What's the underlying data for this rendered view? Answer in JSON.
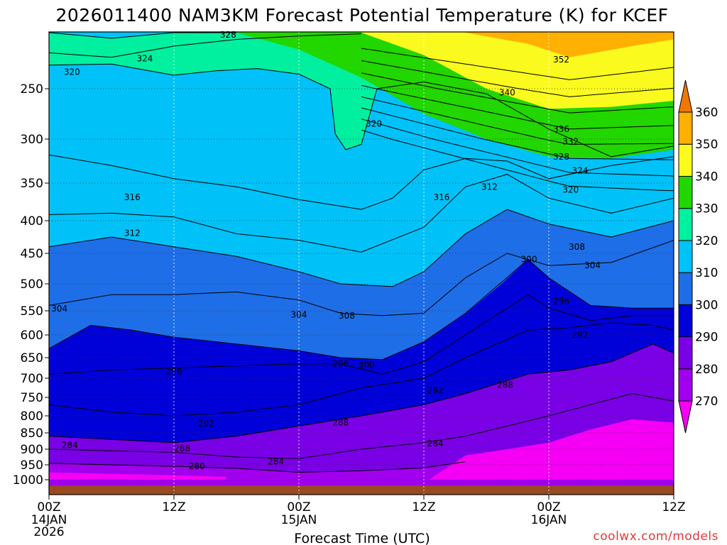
{
  "chart_data": {
    "type": "contour",
    "title": "2026011400 NAM3KM Forecast Potential Temperature (K) for KCEF",
    "xlabel": "Forecast Time (UTC)",
    "ylabel": "",
    "x_ticks": [
      {
        "hour": 0,
        "label": "00Z",
        "sub1": "14JAN",
        "sub2": "2026"
      },
      {
        "hour": 12,
        "label": "12Z",
        "sub1": "",
        "sub2": ""
      },
      {
        "hour": 24,
        "label": "00Z",
        "sub1": "15JAN",
        "sub2": ""
      },
      {
        "hour": 36,
        "label": "12Z",
        "sub1": "",
        "sub2": ""
      },
      {
        "hour": 48,
        "label": "00Z",
        "sub1": "16JAN",
        "sub2": ""
      },
      {
        "hour": 60,
        "label": "12Z",
        "sub1": "",
        "sub2": ""
      }
    ],
    "x_range_hours": [
      0,
      60
    ],
    "y_range_hpa": [
      1000,
      200
    ],
    "y_ticks": [
      250,
      300,
      350,
      400,
      450,
      500,
      550,
      600,
      650,
      700,
      750,
      800,
      850,
      900,
      950,
      1000
    ],
    "colorbar": {
      "levels": [
        270,
        280,
        290,
        300,
        310,
        320,
        330,
        340,
        350,
        360
      ],
      "colors": [
        "#f500f5",
        "#a000ee",
        "#7a00e6",
        "#0000d8",
        "#1e6ee8",
        "#00c2f8",
        "#00f0a0",
        "#22d600",
        "#fafa1e",
        "#ffb000",
        "#f07800"
      ]
    },
    "contour_interval_k": 2,
    "contours": [
      {
        "theta": 328,
        "pts": [
          [
            0,
            200
          ],
          [
            6,
            205
          ],
          [
            12,
            200
          ],
          [
            18,
            197
          ]
        ]
      },
      {
        "theta": 324,
        "pts": [
          [
            0,
            218
          ],
          [
            6,
            222
          ],
          [
            12,
            212
          ],
          [
            18,
            206
          ],
          [
            24,
            203
          ],
          [
            30,
            201
          ]
        ]
      },
      {
        "theta": 320,
        "pts": [
          [
            0,
            229
          ],
          [
            6,
            228
          ],
          [
            12,
            238
          ],
          [
            16,
            234
          ],
          [
            20,
            232
          ],
          [
            24,
            237
          ],
          [
            27,
            250
          ],
          [
            27.5,
            295
          ],
          [
            28.5,
            312
          ],
          [
            30,
            306
          ],
          [
            31.5,
            250
          ],
          [
            36,
            244
          ],
          [
            42,
            255
          ],
          [
            48,
            290
          ],
          [
            54,
            320
          ],
          [
            60,
            308
          ]
        ]
      },
      {
        "theta": 316,
        "pts": [
          [
            0,
            318
          ],
          [
            6,
            330
          ],
          [
            12,
            345
          ],
          [
            18,
            355
          ],
          [
            24,
            372
          ],
          [
            30,
            385
          ],
          [
            33,
            370
          ],
          [
            36,
            335
          ],
          [
            40,
            322
          ],
          [
            44,
            325
          ],
          [
            48,
            345
          ],
          [
            54,
            330
          ],
          [
            60,
            320
          ]
        ]
      },
      {
        "theta": 312,
        "pts": [
          [
            0,
            392
          ],
          [
            6,
            390
          ],
          [
            12,
            395
          ],
          [
            18,
            420
          ],
          [
            24,
            430
          ],
          [
            30,
            448
          ],
          [
            36,
            410
          ],
          [
            40,
            355
          ],
          [
            44,
            340
          ],
          [
            48,
            370
          ],
          [
            54,
            390
          ],
          [
            60,
            370
          ]
        ]
      },
      {
        "theta": 308,
        "pts": [
          [
            0,
            440
          ],
          [
            6,
            425
          ],
          [
            12,
            440
          ],
          [
            18,
            455
          ],
          [
            24,
            480
          ],
          [
            28,
            500
          ],
          [
            33,
            505
          ],
          [
            36,
            480
          ],
          [
            40,
            420
          ],
          [
            44,
            385
          ],
          [
            48,
            405
          ],
          [
            54,
            425
          ],
          [
            60,
            400
          ]
        ]
      },
      {
        "theta": 304,
        "pts": [
          [
            0,
            540
          ],
          [
            6,
            520
          ],
          [
            12,
            520
          ],
          [
            18,
            515
          ],
          [
            24,
            530
          ],
          [
            28,
            555
          ],
          [
            32,
            560
          ],
          [
            36,
            555
          ],
          [
            40,
            490
          ],
          [
            44,
            450
          ],
          [
            48,
            470
          ],
          [
            54,
            465
          ],
          [
            60,
            430
          ]
        ]
      },
      {
        "theta": 300,
        "pts": [
          [
            0,
            630
          ],
          [
            4,
            580
          ],
          [
            8,
            590
          ],
          [
            12,
            605
          ],
          [
            18,
            620
          ],
          [
            24,
            635
          ],
          [
            28,
            650
          ],
          [
            32,
            655
          ],
          [
            36,
            615
          ],
          [
            40,
            555
          ],
          [
            46,
            460
          ],
          [
            48,
            490
          ],
          [
            52,
            540
          ],
          [
            56,
            545
          ],
          [
            60,
            545
          ]
        ]
      },
      {
        "theta": 296,
        "pts": [
          [
            0,
            690
          ],
          [
            6,
            680
          ],
          [
            12,
            675
          ],
          [
            18,
            670
          ],
          [
            24,
            665
          ],
          [
            28,
            665
          ],
          [
            32,
            690
          ],
          [
            36,
            660
          ],
          [
            40,
            600
          ],
          [
            46,
            520
          ],
          [
            48,
            545
          ],
          [
            52,
            570
          ],
          [
            56,
            560
          ],
          [
            60,
            560
          ]
        ]
      },
      {
        "theta": 292,
        "pts": [
          [
            0,
            770
          ],
          [
            6,
            790
          ],
          [
            12,
            800
          ],
          [
            18,
            790
          ],
          [
            24,
            770
          ],
          [
            30,
            725
          ],
          [
            36,
            700
          ],
          [
            40,
            650
          ],
          [
            46,
            590
          ],
          [
            50,
            585
          ],
          [
            54,
            575
          ],
          [
            58,
            580
          ],
          [
            60,
            590
          ]
        ]
      },
      {
        "theta": 288,
        "pts": [
          [
            0,
            860
          ],
          [
            6,
            870
          ],
          [
            12,
            880
          ],
          [
            18,
            860
          ],
          [
            24,
            830
          ],
          [
            30,
            800
          ],
          [
            36,
            770
          ],
          [
            40,
            740
          ],
          [
            46,
            690
          ],
          [
            50,
            680
          ],
          [
            54,
            660
          ],
          [
            58,
            620
          ],
          [
            60,
            640
          ]
        ]
      },
      {
        "theta": 284,
        "pts": [
          [
            0,
            900
          ],
          [
            6,
            905
          ],
          [
            12,
            910
          ],
          [
            18,
            925
          ],
          [
            24,
            930
          ],
          [
            30,
            900
          ],
          [
            36,
            880
          ],
          [
            40,
            860
          ],
          [
            44,
            830
          ],
          [
            48,
            800
          ],
          [
            52,
            770
          ],
          [
            56,
            740
          ],
          [
            60,
            760
          ]
        ]
      },
      {
        "theta": 280,
        "pts": [
          [
            0,
            945
          ],
          [
            6,
            950
          ],
          [
            12,
            955
          ],
          [
            18,
            962
          ],
          [
            24,
            975
          ],
          [
            30,
            970
          ],
          [
            36,
            960
          ],
          [
            40,
            940
          ]
        ]
      }
    ],
    "contour_labels": [
      {
        "value": "328",
        "x_hour": 17.2,
        "p": 202
      },
      {
        "value": "324",
        "x_hour": 9.2,
        "p": 223
      },
      {
        "value": "320",
        "x_hour": 2.2,
        "p": 235
      },
      {
        "value": "320",
        "x_hour": 31.2,
        "p": 285
      },
      {
        "value": "352",
        "x_hour": 49.2,
        "p": 224
      },
      {
        "value": "340",
        "x_hour": 44.0,
        "p": 254
      },
      {
        "value": "336",
        "x_hour": 49.2,
        "p": 290
      },
      {
        "value": "332",
        "x_hour": 50.1,
        "p": 303
      },
      {
        "value": "328",
        "x_hour": 49.2,
        "p": 320
      },
      {
        "value": "324",
        "x_hour": 51.0,
        "p": 336
      },
      {
        "value": "320",
        "x_hour": 50.1,
        "p": 359
      },
      {
        "value": "316",
        "x_hour": 8.0,
        "p": 369
      },
      {
        "value": "316",
        "x_hour": 37.7,
        "p": 369
      },
      {
        "value": "312",
        "x_hour": 42.3,
        "p": 355
      },
      {
        "value": "312",
        "x_hour": 8.0,
        "p": 419
      },
      {
        "value": "308",
        "x_hour": 50.7,
        "p": 440
      },
      {
        "value": "304",
        "x_hour": 52.2,
        "p": 470
      },
      {
        "value": "300",
        "x_hour": 46.1,
        "p": 460
      },
      {
        "value": "304",
        "x_hour": 1.0,
        "p": 546
      },
      {
        "value": "304",
        "x_hour": 24.0,
        "p": 558
      },
      {
        "value": "308",
        "x_hour": 28.6,
        "p": 560
      },
      {
        "value": "296",
        "x_hour": 49.2,
        "p": 532
      },
      {
        "value": "292",
        "x_hour": 51.0,
        "p": 600
      },
      {
        "value": "296",
        "x_hour": 12.0,
        "p": 684
      },
      {
        "value": "296",
        "x_hour": 28.0,
        "p": 665
      },
      {
        "value": "300",
        "x_hour": 30.5,
        "p": 668
      },
      {
        "value": "292",
        "x_hour": 37.1,
        "p": 732
      },
      {
        "value": "288",
        "x_hour": 43.8,
        "p": 718
      },
      {
        "value": "292",
        "x_hour": 15.1,
        "p": 823
      },
      {
        "value": "288",
        "x_hour": 28.0,
        "p": 820
      },
      {
        "value": "284",
        "x_hour": 37.1,
        "p": 883
      },
      {
        "value": "284",
        "x_hour": 2.0,
        "p": 888
      },
      {
        "value": "288",
        "x_hour": 12.8,
        "p": 898
      },
      {
        "value": "280",
        "x_hour": 14.2,
        "p": 955
      },
      {
        "value": "284",
        "x_hour": 21.8,
        "p": 940
      }
    ]
  },
  "credit": "coolwx.com/models"
}
